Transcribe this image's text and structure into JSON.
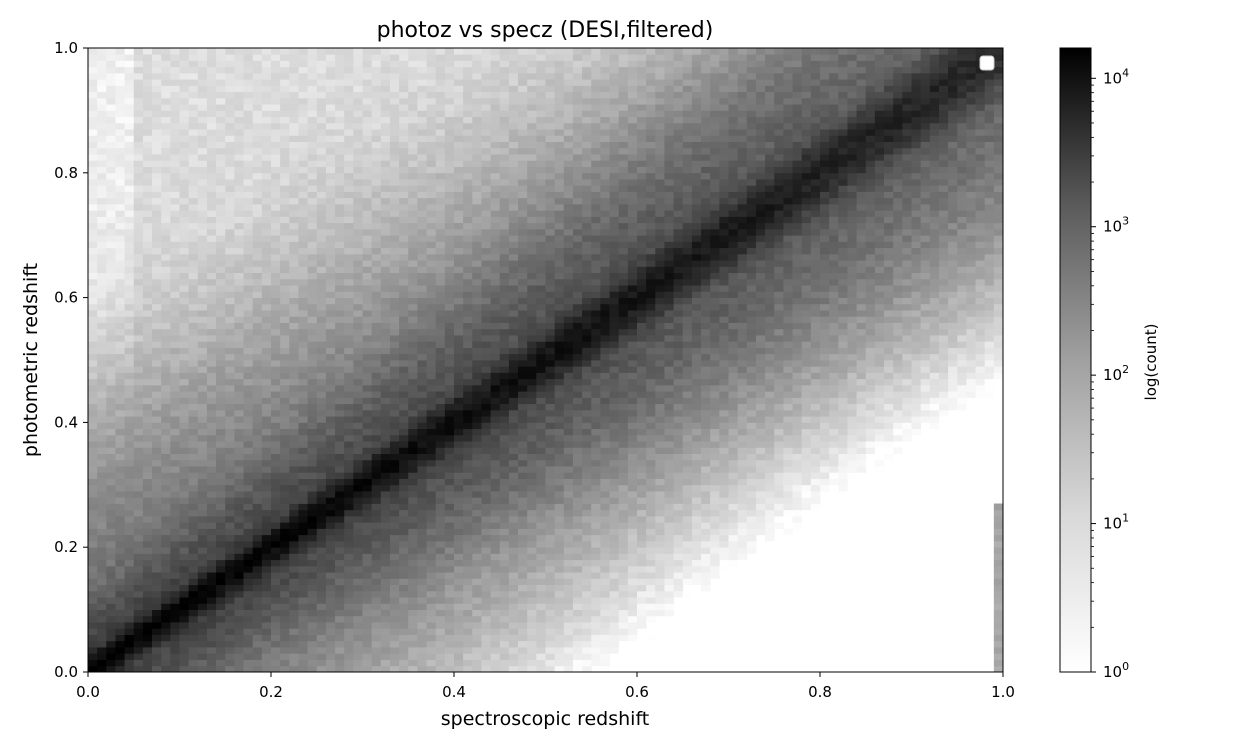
{
  "chart_data": {
    "type": "heatmap",
    "title": "photoz vs specz (DESI,filtered)",
    "xlabel": "spectroscopic redshift",
    "ylabel": "photometric redshift",
    "xlim": [
      0.0,
      1.0
    ],
    "ylim": [
      0.0,
      1.0
    ],
    "xticks": [
      "0.0",
      "0.2",
      "0.4",
      "0.6",
      "0.8",
      "1.0"
    ],
    "yticks": [
      "0.0",
      "0.2",
      "0.4",
      "0.6",
      "0.8",
      "1.0"
    ],
    "xtick_values": [
      0.0,
      0.2,
      0.4,
      0.6,
      0.8,
      1.0
    ],
    "ytick_values": [
      0.0,
      0.2,
      0.4,
      0.6,
      0.8,
      1.0
    ],
    "bins": [
      100,
      100
    ],
    "colormap": "Greys",
    "colorbar": {
      "label": "log(count)",
      "scale": "log",
      "range": [
        1,
        16000
      ],
      "ticks": [
        {
          "value": 1,
          "base": "10",
          "exp": "0"
        },
        {
          "value": 10,
          "base": "10",
          "exp": "1"
        },
        {
          "value": 100,
          "base": "10",
          "exp": "2"
        },
        {
          "value": 1000,
          "base": "10",
          "exp": "3"
        },
        {
          "value": 10000,
          "base": "10",
          "exp": "4"
        }
      ]
    },
    "legend": "top-right (empty)",
    "grid": false,
    "description_of_density": {
      "ridge": "dense diagonal along photometric ≈ spectroscopic redshift",
      "peak_count_near": [
        0.05,
        0.05
      ],
      "peak_count": 16000
    }
  }
}
